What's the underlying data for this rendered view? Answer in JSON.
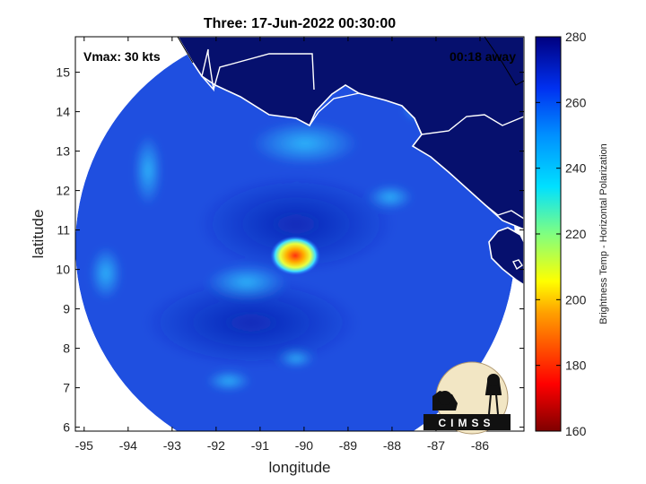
{
  "title": "Three: 17-Jun-2022 00:30:00",
  "vmax_text": "Vmax: 30 kts",
  "away_text": "00:18 away",
  "map": {
    "xlabel": "longitude",
    "ylabel": "latitude",
    "xlim": [
      -95.2,
      -85.0
    ],
    "ylim": [
      5.9,
      15.9
    ],
    "xticks": [
      -95,
      -94,
      -93,
      -92,
      -91,
      -90,
      -89,
      -88,
      -87,
      -86
    ],
    "yticks": [
      6,
      7,
      8,
      9,
      10,
      11,
      12,
      13,
      14,
      15
    ],
    "swath_center": [
      -90.2,
      10.6
    ],
    "swath_radius_deg": 5.0,
    "eye_center": [
      -90.2,
      10.35
    ]
  },
  "colorbar": {
    "label": "Brightness Temp - Horizontal Polarization",
    "min": 160,
    "max": 280,
    "ticks": [
      160,
      180,
      200,
      220,
      240,
      260,
      280
    ]
  },
  "colors": {
    "background_tb": "#1f4fe0",
    "land": "#06106e",
    "coast": "#ffffff"
  },
  "logo": {
    "text": "CIMSS"
  }
}
